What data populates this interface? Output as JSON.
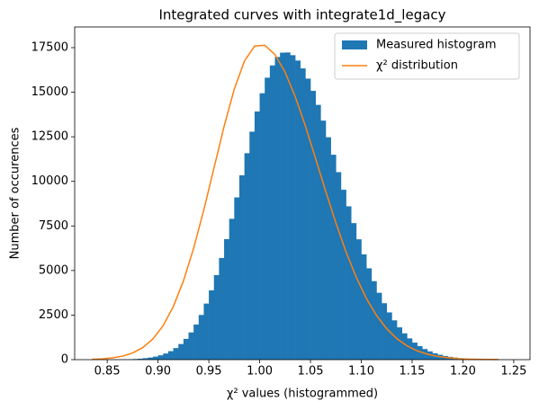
{
  "chart_data": {
    "type": "histogram",
    "title": "Integrated curves with integrate1d_legacy",
    "xlabel": "χ² values (histogrammed)",
    "ylabel": "Number of occurences",
    "xlim": [
      0.818,
      1.266
    ],
    "ylim": [
      0,
      18660
    ],
    "xticks": [
      0.85,
      {
        "value": 0.9,
        "label": "0.90"
      },
      0.95,
      {
        "value": 1.0,
        "label": "1.00"
      },
      1.05,
      {
        "value": 1.1,
        "label": "1.10"
      },
      1.15,
      {
        "value": 1.2,
        "label": "1.20"
      },
      1.25
    ],
    "yticks": [
      0,
      2500,
      5000,
      7500,
      10000,
      12500,
      15000,
      17500
    ],
    "legend": "upper right",
    "series": [
      {
        "type": "histogram",
        "name": "Measured histogram",
        "color": "#1f77b4",
        "bins": [
          0.84,
          0.845,
          0.85,
          0.855,
          0.86,
          0.865,
          0.87,
          0.875,
          0.88,
          0.885,
          0.89,
          0.895,
          0.9,
          0.905,
          0.91,
          0.915,
          0.92,
          0.925,
          0.93,
          0.935,
          0.94,
          0.945,
          0.95,
          0.955,
          0.96,
          0.965,
          0.97,
          0.975,
          0.98,
          0.985,
          0.99,
          0.995,
          1.0,
          1.005,
          1.01,
          1.015,
          1.02,
          1.025,
          1.03,
          1.035,
          1.04,
          1.045,
          1.05,
          1.055,
          1.06,
          1.065,
          1.07,
          1.075,
          1.08,
          1.085,
          1.09,
          1.095,
          1.1,
          1.105,
          1.11,
          1.115,
          1.12,
          1.125,
          1.13,
          1.135,
          1.14,
          1.145,
          1.15,
          1.155,
          1.16,
          1.165,
          1.17,
          1.175,
          1.18,
          1.185,
          1.19,
          1.195,
          1.2,
          1.205,
          1.21,
          1.215,
          1.22,
          1.225,
          1.23,
          1.235,
          1.24
        ],
        "values": [
          1,
          2,
          4,
          6,
          10,
          15,
          24,
          36,
          54,
          82,
          119,
          172,
          245,
          345,
          476,
          649,
          876,
          1166,
          1526,
          1970,
          2507,
          3145,
          3888,
          4744,
          5701,
          6759,
          7899,
          9101,
          10340,
          11580,
          12788,
          13921,
          14944,
          15816,
          16503,
          16977,
          17219,
          17231,
          17078,
          16777,
          16335,
          15764,
          15078,
          14291,
          13408,
          12475,
          11493,
          10517,
          9530,
          8601,
          7658,
          6750,
          5908,
          5124,
          4403,
          3750,
          3166,
          2650,
          2205,
          1812,
          1476,
          1192,
          955,
          757,
          596,
          465,
          358,
          275,
          208,
          157,
          117,
          86,
          63,
          46,
          33,
          24,
          17,
          12,
          8,
          6
        ]
      },
      {
        "type": "line",
        "name": "χ² distribution",
        "color": "#ff7f0e",
        "x": [
          0.835,
          0.845,
          0.855,
          0.865,
          0.875,
          0.885,
          0.895,
          0.905,
          0.915,
          0.925,
          0.935,
          0.945,
          0.955,
          0.965,
          0.975,
          0.985,
          0.995,
          1.005,
          1.015,
          1.025,
          1.035,
          1.045,
          1.055,
          1.065,
          1.075,
          1.085,
          1.095,
          1.105,
          1.115,
          1.125,
          1.135,
          1.145,
          1.155,
          1.165,
          1.175,
          1.185,
          1.195,
          1.205,
          1.215,
          1.225,
          1.235
        ],
        "values": [
          21,
          47,
          99,
          196,
          374,
          676,
          1163,
          1907,
          2973,
          4415,
          6236,
          8387,
          10735,
          13081,
          15170,
          16743,
          17591,
          17634,
          17118,
          16130,
          14752,
          13106,
          11286,
          9443,
          7669,
          6046,
          4628,
          3436,
          2480,
          1736,
          1179,
          775,
          497,
          309,
          186,
          109,
          62,
          34,
          18,
          10,
          5
        ]
      }
    ]
  }
}
